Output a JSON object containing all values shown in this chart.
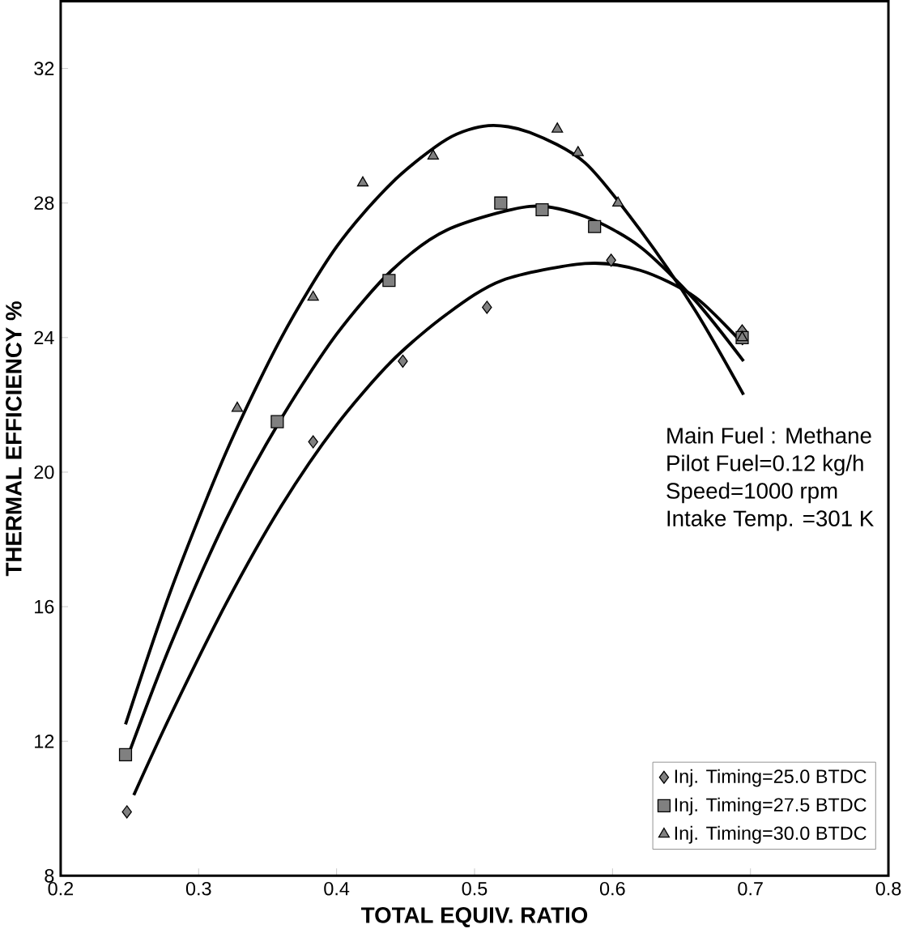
{
  "chart_data": {
    "type": "scatter",
    "xlabel": "TOTAL EQUIV. RATIO",
    "ylabel": "THERMAL  EFFICIENCY  %",
    "xlim": [
      0.2,
      0.8
    ],
    "xticks": [
      0.2,
      0.3,
      0.4,
      0.5,
      0.6,
      0.7,
      0.8
    ],
    "ylim": [
      8,
      34
    ],
    "yticks": [
      8,
      12,
      16,
      20,
      24,
      28,
      32
    ],
    "grid": false,
    "legend": "bottom right",
    "annotations": [
      "Main Fuel : Methane",
      "Pilot Fuel=0.12 kg/h",
      "Speed=1000 rpm",
      "Intake Temp. =301 K"
    ],
    "series": [
      {
        "name": "Inj. Timing=25.0 BTDC",
        "color": "#808080",
        "marker": "diamond",
        "x": [
          0.248,
          0.383,
          0.448,
          0.509,
          0.599,
          0.694
        ],
        "values": [
          9.9,
          20.9,
          23.3,
          24.9,
          26.3,
          24.2
        ]
      },
      {
        "name": "Inj. Timing=27.5 BTDC",
        "color": "#808080",
        "marker": "square",
        "x": [
          0.247,
          0.357,
          0.438,
          0.519,
          0.549,
          0.587,
          0.694
        ],
        "values": [
          11.6,
          21.5,
          25.7,
          28.0,
          27.8,
          27.3,
          24.0
        ]
      },
      {
        "name": "Inj. Timing=30.0 BTDC",
        "color": "#808080",
        "marker": "triangle",
        "x": [
          0.328,
          0.383,
          0.419,
          0.47,
          0.56,
          0.575,
          0.604,
          0.694
        ],
        "values": [
          21.9,
          25.2,
          28.6,
          29.4,
          30.2,
          29.5,
          28.0,
          24.0
        ]
      },
      {
        "type": "line",
        "color": "#000000",
        "marker": "none",
        "x": [
          0.253,
          0.28,
          0.32,
          0.36,
          0.4,
          0.44,
          0.48,
          0.52,
          0.58,
          0.62,
          0.66,
          0.695
        ],
        "values": [
          10.4,
          12.8,
          16.1,
          19.0,
          21.4,
          23.3,
          24.7,
          25.7,
          26.2,
          26.0,
          25.2,
          23.8
        ]
      },
      {
        "type": "line",
        "color": "#000000",
        "marker": "none",
        "x": [
          0.25,
          0.28,
          0.32,
          0.36,
          0.4,
          0.44,
          0.48,
          0.54,
          0.58,
          0.62,
          0.66,
          0.695
        ],
        "values": [
          11.7,
          14.9,
          18.6,
          21.6,
          24.1,
          26.0,
          27.2,
          27.9,
          27.6,
          26.7,
          25.1,
          23.3
        ]
      },
      {
        "type": "line",
        "color": "#000000",
        "marker": "none",
        "x": [
          0.247,
          0.28,
          0.32,
          0.36,
          0.4,
          0.44,
          0.48,
          0.51,
          0.54,
          0.58,
          0.62,
          0.66,
          0.695
        ],
        "values": [
          12.5,
          16.5,
          20.6,
          24.0,
          26.7,
          28.6,
          29.9,
          30.3,
          30.1,
          29.2,
          27.2,
          24.8,
          22.3
        ]
      }
    ]
  }
}
